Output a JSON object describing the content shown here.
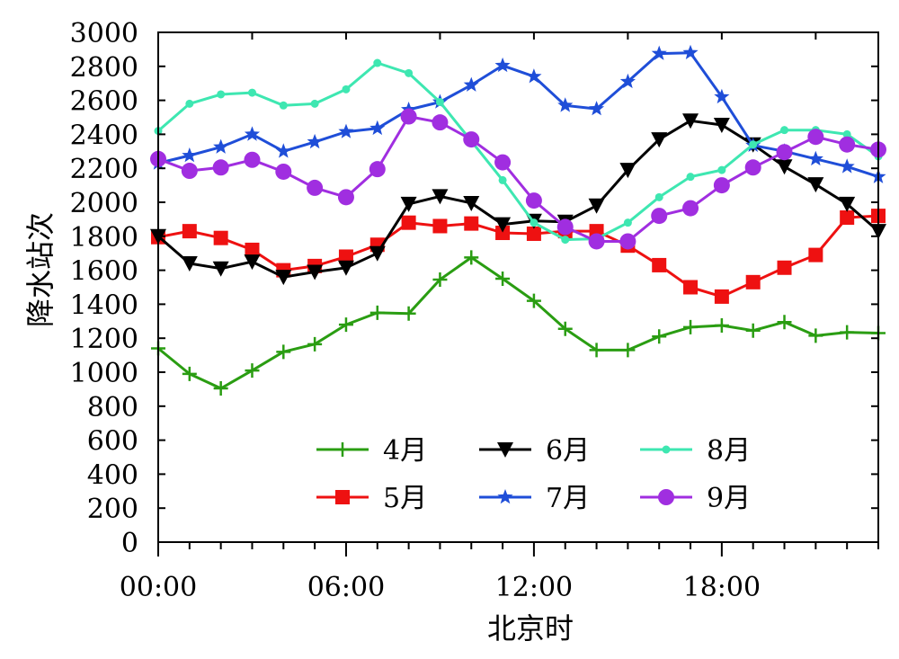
{
  "chart_data": {
    "type": "line",
    "xlabel": "北京时",
    "ylabel": "降水站次",
    "ylim": [
      0,
      3000
    ],
    "xlim": [
      0,
      23
    ],
    "y_ticks": [
      0,
      200,
      400,
      600,
      800,
      1000,
      1200,
      1400,
      1600,
      1800,
      2000,
      2200,
      2400,
      2600,
      2800,
      3000
    ],
    "y_tick_labels": [
      "0",
      "200",
      "400",
      "600",
      "800",
      "1000",
      "1200",
      "1400",
      "1600",
      "1800",
      "2000",
      "2200",
      "2400",
      "2600",
      "2800",
      "3000"
    ],
    "x_ticks": [
      0,
      6,
      12,
      18
    ],
    "x_tick_labels": [
      "00:00",
      "06:00",
      "12:00",
      "18:00"
    ],
    "x": [
      0,
      1,
      2,
      3,
      4,
      5,
      6,
      7,
      8,
      9,
      10,
      11,
      12,
      13,
      14,
      15,
      16,
      17,
      18,
      19,
      20,
      21,
      22,
      23
    ],
    "series": [
      {
        "name": "4月",
        "color": "#2a9d12",
        "marker": "plus",
        "values": [
          1140,
          990,
          905,
          1010,
          1120,
          1165,
          1280,
          1350,
          1345,
          1545,
          1675,
          1550,
          1420,
          1255,
          1130,
          1130,
          1210,
          1265,
          1275,
          1245,
          1295,
          1215,
          1235,
          1230
        ]
      },
      {
        "name": "5月",
        "color": "#ee1111",
        "marker": "square",
        "values": [
          1795,
          1830,
          1790,
          1720,
          1600,
          1625,
          1680,
          1750,
          1880,
          1860,
          1875,
          1820,
          1815,
          1830,
          1830,
          1745,
          1630,
          1500,
          1445,
          1530,
          1615,
          1690,
          1910,
          1920
        ]
      },
      {
        "name": "6月",
        "color": "#000000",
        "marker": "triangle-down",
        "values": [
          1800,
          1640,
          1610,
          1650,
          1560,
          1590,
          1615,
          1700,
          1990,
          2035,
          1995,
          1870,
          1890,
          1885,
          1980,
          2190,
          2370,
          2480,
          2455,
          2340,
          2210,
          2105,
          1990,
          1830
        ]
      },
      {
        "name": "7月",
        "color": "#1f4ed8",
        "marker": "star",
        "values": [
          2230,
          2275,
          2325,
          2400,
          2300,
          2355,
          2415,
          2435,
          2545,
          2590,
          2690,
          2805,
          2740,
          2570,
          2550,
          2710,
          2875,
          2880,
          2620,
          2335,
          2300,
          2255,
          2210,
          2150
        ]
      },
      {
        "name": "8月",
        "color": "#3ee7b1",
        "marker": "dot",
        "values": [
          2420,
          2580,
          2635,
          2645,
          2570,
          2580,
          2665,
          2820,
          2760,
          2590,
          2360,
          2130,
          1880,
          1780,
          1785,
          1880,
          2030,
          2150,
          2190,
          2340,
          2425,
          2425,
          2400,
          2270
        ]
      },
      {
        "name": "9月",
        "color": "#a02ee0",
        "marker": "circle",
        "values": [
          2255,
          2185,
          2205,
          2250,
          2180,
          2085,
          2030,
          2195,
          2505,
          2470,
          2370,
          2235,
          2010,
          1855,
          1770,
          1770,
          1920,
          1965,
          2100,
          2205,
          2295,
          2385,
          2340,
          2310
        ]
      }
    ],
    "legend": [
      [
        "4月",
        "6月",
        "8月"
      ],
      [
        "5月",
        "7月",
        "9月"
      ]
    ],
    "legend_placement": "bottom-center"
  }
}
